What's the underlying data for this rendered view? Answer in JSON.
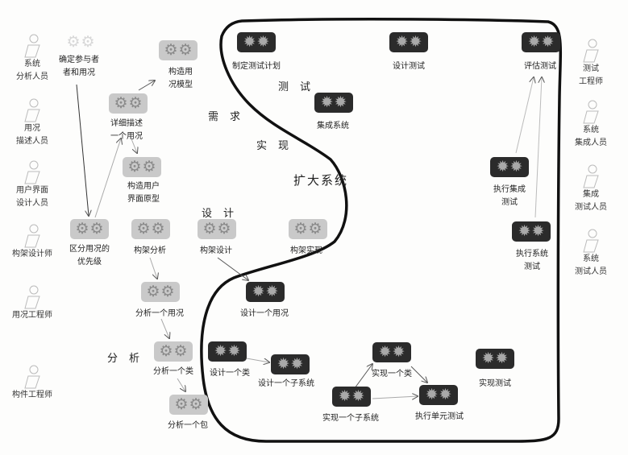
{
  "phases": {
    "requirements": "需求",
    "test": "测试",
    "implementation": "实现",
    "expand": "扩大系统",
    "design": "设计",
    "analysis": "分析"
  },
  "roles_left": [
    "系统\n分析人员",
    "用况\n描述人员",
    "用户界面\n设计人员",
    "构架设计师",
    "用况工程师",
    "构件工程师"
  ],
  "roles_right": [
    "测试\n工程师",
    "系统\n集成人员",
    "集成\n测试人员",
    "系统\n测试人员"
  ],
  "activities": {
    "find_actors": "确定参与者\n者和用况",
    "structure_usecase_model": "构造用\n况模型",
    "detail_usecase": "详细描述\n一个用况",
    "prototype_ui": "构造用户\n界面原型",
    "prioritize": "区分用况的\n优先级",
    "arch_analysis": "构架分析",
    "arch_design": "构架设计",
    "arch_impl": "构架实现",
    "analyze_usecase": "分析一个用况",
    "analyze_class": "分析一个类",
    "analyze_package": "分析一个包",
    "plan_test": "制定测试计划",
    "design_test": "设计测试",
    "evaluate_test": "评估测试",
    "integrate_system": "集成系统",
    "integration_test": "执行集成\n测试",
    "system_test": "执行系统\n测试",
    "design_usecase": "设计一个用况",
    "design_class": "设计一个类",
    "design_subsystem": "设计一个子系统",
    "implement_class": "实现一个类",
    "implement_subsystem": "实现一个子系统",
    "unit_test": "执行单元测试",
    "implement_test": "实现测试"
  }
}
